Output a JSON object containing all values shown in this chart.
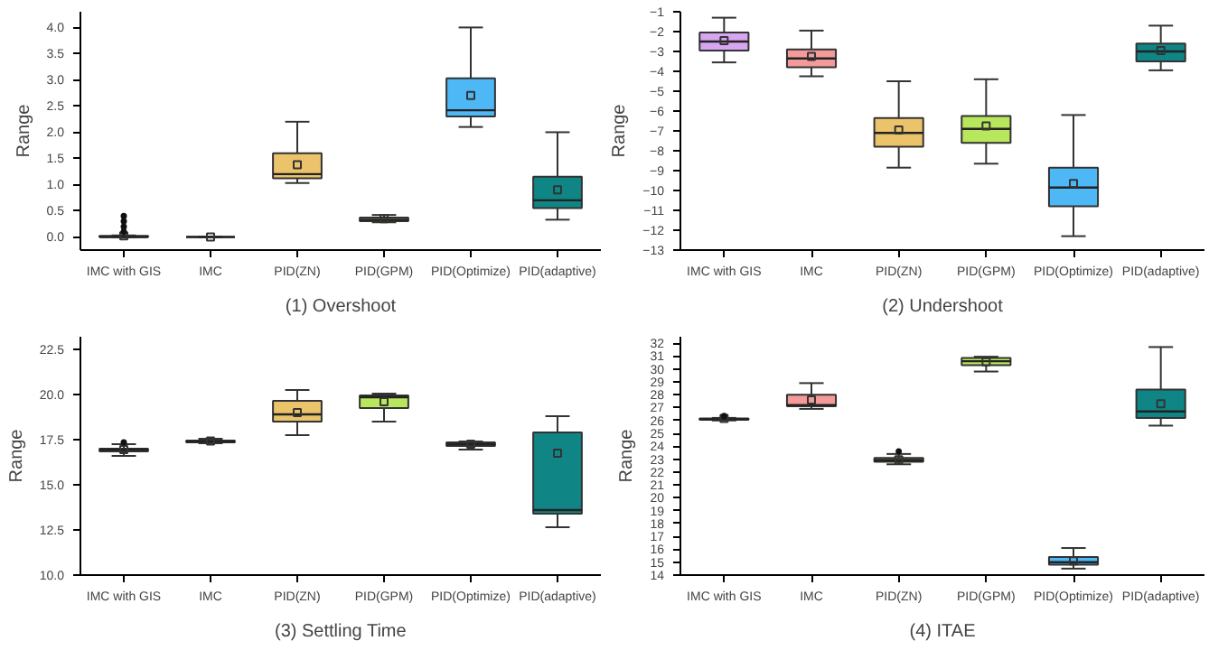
{
  "chart_data": [
    {
      "type": "box",
      "title": "(1) Overshoot",
      "ylabel": "Range",
      "categories": [
        "IMC with GIS",
        "IMC",
        "PID(ZN)",
        "PID(GPM)",
        "PID(Optimize)",
        "PID(adaptive)"
      ],
      "colors": [
        "#2a1f3a",
        "#6a3a3a",
        "#ebc36b",
        "#b8e65c",
        "#4db8f5",
        "#0f8585"
      ],
      "boxes": [
        {
          "low": 0,
          "q1": 0,
          "median": 0,
          "q3": 0.02,
          "high": 0.03,
          "mean": 0.02,
          "outliers": [
            0.1,
            0.2,
            0.3,
            0.4
          ]
        },
        {
          "low": 0,
          "q1": 0,
          "median": 0,
          "q3": 0,
          "high": 0,
          "mean": 0
        },
        {
          "low": 1.03,
          "q1": 1.12,
          "median": 1.2,
          "q3": 1.6,
          "high": 2.2,
          "mean": 1.38
        },
        {
          "low": 0.28,
          "q1": 0.3,
          "median": 0.33,
          "q3": 0.37,
          "high": 0.42,
          "mean": 0.35
        },
        {
          "low": 2.1,
          "q1": 2.3,
          "median": 2.42,
          "q3": 3.03,
          "high": 4.0,
          "mean": 2.7
        },
        {
          "low": 0.33,
          "q1": 0.55,
          "median": 0.7,
          "q3": 1.15,
          "high": 2.0,
          "mean": 0.9
        }
      ],
      "ylim": [
        -0.25,
        4.3
      ],
      "yticks": [
        {
          "value": 0,
          "label": "0.0"
        },
        {
          "value": 0.5,
          "label": "0.5"
        },
        {
          "value": 1,
          "label": "1.0"
        },
        {
          "value": 1.5,
          "label": "1.5"
        },
        {
          "value": 2,
          "label": "2.0"
        },
        {
          "value": 2.5,
          "label": "2.5"
        },
        {
          "value": 3,
          "label": "3.0"
        },
        {
          "value": 3.5,
          "label": "3.5"
        },
        {
          "value": 4,
          "label": "4.0"
        }
      ]
    },
    {
      "type": "box",
      "title": "(2) Undershoot",
      "ylabel": "Range",
      "categories": [
        "IMC with GIS",
        "IMC",
        "PID(ZN)",
        "PID(GPM)",
        "PID(Optimize)",
        "PID(adaptive)"
      ],
      "colors": [
        "#d8a6f0",
        "#f59a9a",
        "#ebc36b",
        "#b8e65c",
        "#4db8f5",
        "#0f8585"
      ],
      "boxes": [
        {
          "low": -3.55,
          "q1": -2.95,
          "median": -2.5,
          "q3": -2.05,
          "high": -1.3,
          "mean": -2.45
        },
        {
          "low": -4.25,
          "q1": -3.8,
          "median": -3.35,
          "q3": -2.9,
          "high": -1.95,
          "mean": -3.25
        },
        {
          "low": -8.85,
          "q1": -7.8,
          "median": -7.1,
          "q3": -6.35,
          "high": -4.5,
          "mean": -6.95
        },
        {
          "low": -8.65,
          "q1": -7.6,
          "median": -6.9,
          "q3": -6.25,
          "high": -4.4,
          "mean": -6.75
        },
        {
          "low": -12.3,
          "q1": -10.8,
          "median": -9.85,
          "q3": -8.85,
          "high": -6.2,
          "mean": -9.65
        },
        {
          "low": -3.95,
          "q1": -3.5,
          "median": -3.0,
          "q3": -2.6,
          "high": -1.7,
          "mean": -2.95
        }
      ],
      "ylim": [
        -13,
        -1
      ],
      "yticks": [
        -13,
        -12,
        -11,
        -10,
        -9,
        -8,
        -7,
        -6,
        -5,
        -4,
        -3,
        -2,
        -1
      ]
    },
    {
      "type": "box",
      "title": "(3) Settling Time",
      "ylabel": "Range",
      "categories": [
        "IMC with GIS",
        "IMC",
        "PID(ZN)",
        "PID(GPM)",
        "PID(Optimize)",
        "PID(adaptive)"
      ],
      "colors": [
        "#6a5a8a",
        "#b07070",
        "#ebc36b",
        "#b8e65c",
        "#2a7ab0",
        "#0f8585"
      ],
      "boxes": [
        {
          "low": 16.6,
          "q1": 16.85,
          "median": 16.95,
          "q3": 17.0,
          "high": 17.25,
          "mean": 16.95,
          "outliers": [
            17.35
          ]
        },
        {
          "low": 17.3,
          "q1": 17.35,
          "median": 17.4,
          "q3": 17.45,
          "high": 17.55,
          "mean": 17.42
        },
        {
          "low": 17.75,
          "q1": 18.5,
          "median": 18.9,
          "q3": 19.65,
          "high": 20.25,
          "mean": 19.0
        },
        {
          "low": 18.5,
          "q1": 19.25,
          "median": 19.85,
          "q3": 19.95,
          "high": 20.05,
          "mean": 19.6
        },
        {
          "low": 16.95,
          "q1": 17.15,
          "median": 17.25,
          "q3": 17.35,
          "high": 17.4,
          "mean": 17.25
        },
        {
          "low": 12.65,
          "q1": 13.4,
          "median": 13.6,
          "q3": 17.9,
          "high": 18.8,
          "mean": 16.75
        }
      ],
      "ylim": [
        10,
        23.2
      ],
      "yticks": [
        {
          "value": 10,
          "label": "10.0"
        },
        {
          "value": 12.5,
          "label": "12.5"
        },
        {
          "value": 15,
          "label": "15.0"
        },
        {
          "value": 17.5,
          "label": "17.5"
        },
        {
          "value": 20,
          "label": "20.0"
        },
        {
          "value": 22.5,
          "label": "22.5"
        }
      ]
    },
    {
      "type": "box",
      "title": "(4) ITAE",
      "ylabel": "Range",
      "categories": [
        "IMC with GIS",
        "IMC",
        "PID(ZN)",
        "PID(GPM)",
        "PID(Optimize)",
        "PID(adaptive)"
      ],
      "colors": [
        "#6a5a8a",
        "#f59a9a",
        "#6b5f2a",
        "#b8e65c",
        "#4db8f5",
        "#0f8585"
      ],
      "boxes": [
        {
          "low": 26.0,
          "q1": 26.05,
          "median": 26.1,
          "q3": 26.15,
          "high": 26.2,
          "mean": 26.15,
          "outliers": [
            26.35
          ]
        },
        {
          "low": 26.9,
          "q1": 27.1,
          "median": 27.2,
          "q3": 28.0,
          "high": 28.9,
          "mean": 27.6
        },
        {
          "low": 22.6,
          "q1": 22.8,
          "median": 22.9,
          "q3": 23.1,
          "high": 23.4,
          "mean": 22.95,
          "outliers": [
            23.6
          ]
        },
        {
          "low": 29.8,
          "q1": 30.3,
          "median": 30.6,
          "q3": 30.85,
          "high": 30.95,
          "mean": 30.55
        },
        {
          "low": 14.5,
          "q1": 14.8,
          "median": 15.0,
          "q3": 15.4,
          "high": 16.1,
          "mean": 15.1
        },
        {
          "low": 25.6,
          "q1": 26.2,
          "median": 26.7,
          "q3": 28.4,
          "high": 31.7,
          "mean": 27.3
        }
      ],
      "ylim": [
        14,
        32.5
      ],
      "yticks": [
        14,
        15,
        16,
        17,
        18,
        19,
        20,
        21,
        22,
        23,
        24,
        25,
        26,
        27,
        28,
        29,
        30,
        31,
        32
      ]
    }
  ]
}
